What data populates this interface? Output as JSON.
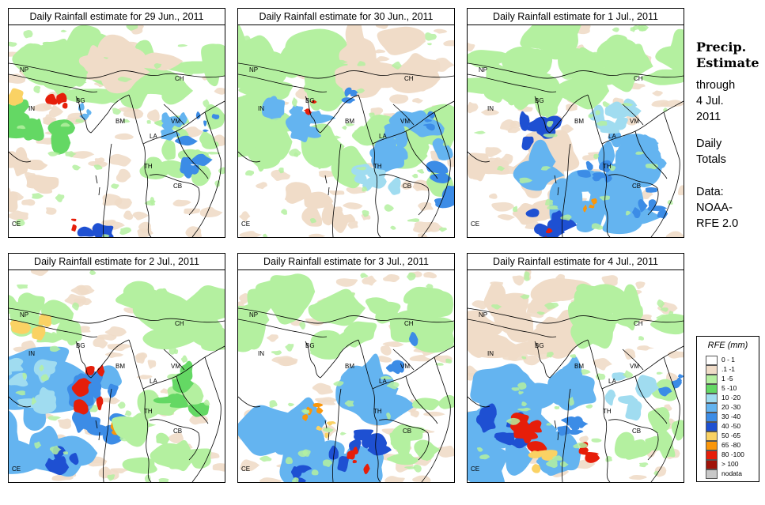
{
  "panels": [
    {
      "title": "Daily Rainfall estimate for  29 Jun., 2011"
    },
    {
      "title": "Daily Rainfall estimate for  30 Jun., 2011"
    },
    {
      "title": "Daily Rainfall estimate for  1 Jul., 2011"
    },
    {
      "title": "Daily Rainfall estimate for  2 Jul., 2011"
    },
    {
      "title": "Daily Rainfall estimate for  3 Jul., 2011"
    },
    {
      "title": "Daily Rainfall estimate for  4 Jul., 2011"
    }
  ],
  "map_labels": [
    "NP",
    "CH",
    "IN",
    "BG",
    "BM",
    "VM",
    "LA",
    "TH",
    "CB",
    "CE"
  ],
  "side": {
    "title_line1": "Precip.",
    "title_line2": "Estimate",
    "through_1": "through",
    "through_2": "4 Jul.",
    "through_3": "2011",
    "totals_1": "Daily",
    "totals_2": "Totals",
    "data_1": "Data:",
    "data_2": "NOAA-",
    "data_3": "RFE 2.0"
  },
  "legend": {
    "title": "RFE (mm)",
    "items": [
      {
        "label": "0 - 1",
        "color": "#ffffff"
      },
      {
        "label": ".1 -1",
        "color": "#f0dcc8"
      },
      {
        "label": "1 -5",
        "color": "#b4f0a0"
      },
      {
        "label": "5 -10",
        "color": "#64d864"
      },
      {
        "label": "10 -20",
        "color": "#a0dcf0"
      },
      {
        "label": "20 -30",
        "color": "#64b4f0"
      },
      {
        "label": "30 -40",
        "color": "#3c8ce6"
      },
      {
        "label": "40 -50",
        "color": "#1e50d2"
      },
      {
        "label": "50 -65",
        "color": "#fad264"
      },
      {
        "label": "65 -80",
        "color": "#fa960a"
      },
      {
        "label": "80 -100",
        "color": "#e61e0a"
      },
      {
        "label": "> 100",
        "color": "#a0140a"
      },
      {
        "label": "nodata",
        "color": "#c8c8c8"
      }
    ]
  }
}
